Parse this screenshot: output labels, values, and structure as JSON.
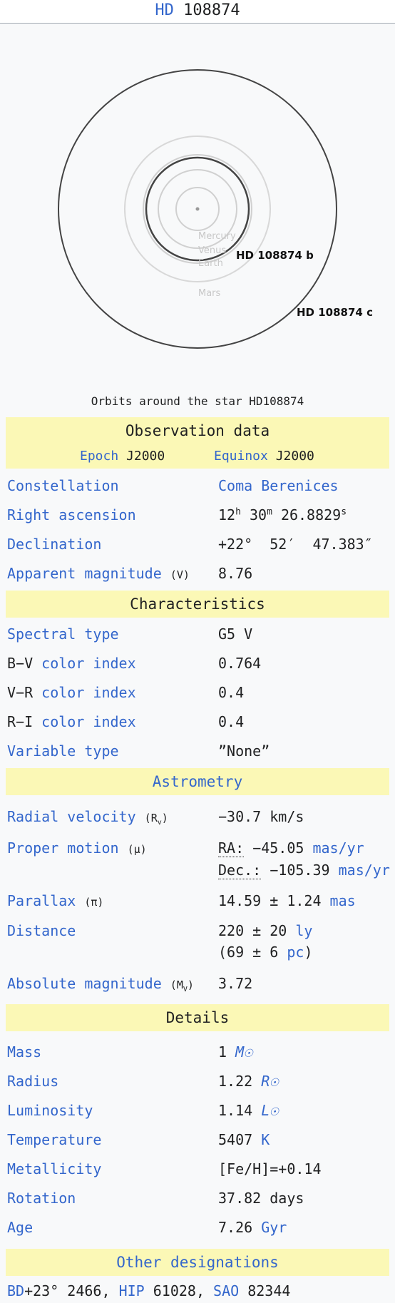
{
  "title": {
    "prefix": "HD",
    "number": "108874"
  },
  "diagram": {
    "solar_labels": [
      "Mercury",
      "Venus",
      "Earth",
      "Mars"
    ],
    "planet_b": "HD 108874 b",
    "planet_c": "HD 108874 c"
  },
  "caption": "Orbits around the star HD108874",
  "observation": {
    "header": "Observation data",
    "epoch_label": "Epoch",
    "epoch_value": "J2000",
    "equinox_label": "Equinox",
    "equinox_value": "J2000",
    "constellation_label": "Constellation",
    "constellation_value": "Coma Berenices",
    "ra_label": "Right ascension",
    "ra_h": "12",
    "ra_m": "30",
    "ra_s": "26.8829",
    "dec_label": "Declination",
    "dec_value": "+22°  52′  47.383″",
    "appmag_label": "Apparent magnitude",
    "appmag_sub": "(V)",
    "appmag_value": "8.76"
  },
  "characteristics": {
    "header": "Characteristics",
    "spectral_label": "Spectral type",
    "spectral_value": "G5 V",
    "bv_label_a": "B−V",
    "bv_label_b": "color index",
    "bv_value": "0.764",
    "vr_label_a": "V−R",
    "vr_label_b": "color index",
    "vr_value": "0.4",
    "ri_label_a": "R−I",
    "ri_label_b": "color index",
    "ri_value": "0.4",
    "variable_label": "Variable type",
    "variable_value": "”None”"
  },
  "astrometry": {
    "header": "Astrometry",
    "rv_label": "Radial velocity",
    "rv_sym": "(R",
    "rv_sub": "v",
    "rv_close": ")",
    "rv_value": "−30.7 km/s",
    "pm_label": "Proper motion",
    "pm_sym": "(μ)",
    "pm_ra_label": "RA:",
    "pm_ra_value": "−45.05",
    "pm_ra_unit": "mas/yr",
    "pm_dec_label": "Dec.:",
    "pm_dec_value": "−105.39",
    "pm_dec_unit": "mas/yr",
    "parallax_label": "Parallax",
    "parallax_sym": "(π)",
    "parallax_value": "14.59 ± 1.24",
    "parallax_unit": "mas",
    "distance_label": "Distance",
    "distance_ly_value": "220 ± 20",
    "distance_ly_unit": "ly",
    "distance_pc_open": "(69 ± 6",
    "distance_pc_unit": "pc",
    "distance_pc_close": ")",
    "absmag_label": "Absolute magnitude",
    "absmag_sym": "(M",
    "absmag_sub": "V",
    "absmag_close": ")",
    "absmag_value": "3.72"
  },
  "details": {
    "header": "Details",
    "mass_label": "Mass",
    "mass_value": "1",
    "mass_unit": "M☉",
    "radius_label": "Radius",
    "radius_value": "1.22",
    "radius_unit": "R☉",
    "lum_label": "Luminosity",
    "lum_value": "1.14",
    "lum_unit": "L☉",
    "temp_label": "Temperature",
    "temp_value": "5407",
    "temp_unit": "K",
    "metal_label": "Metallicity",
    "metal_value": "[Fe/H]=+0.14",
    "rotation_label": "Rotation",
    "rotation_value": "37.82 days",
    "age_label": "Age",
    "age_value": "7.26",
    "age_unit": "Gyr"
  },
  "designations": {
    "header": "Other designations",
    "bd_link": "BD",
    "bd_value": "+23° 2466,",
    "hip_link": "HIP",
    "hip_value": "61028,",
    "sao_link": "SAO",
    "sao_value": "82344"
  },
  "colors": {
    "link": "#3366cc",
    "header_bg": "#fbf8b6",
    "text": "#202122"
  }
}
